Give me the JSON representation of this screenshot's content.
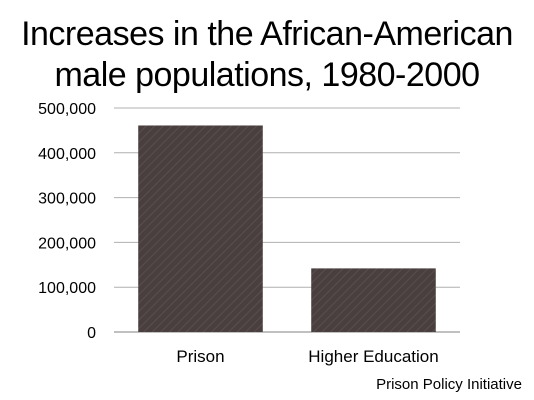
{
  "chart_data": {
    "type": "bar",
    "title_lines": [
      "Increases in the African-American",
      "male populations, 1980-2000"
    ],
    "categories": [
      "Prison",
      "Higher Education"
    ],
    "values": [
      461000,
      142000
    ],
    "ylim": [
      0,
      500000
    ],
    "yticks": [
      0,
      100000,
      200000,
      300000,
      400000,
      500000
    ],
    "ytick_labels": [
      "0",
      "100,000",
      "200,000",
      "300,000",
      "400,000",
      "500,000"
    ],
    "grid": true,
    "bar_color": "#4a3f3f",
    "bar_stripe_color": "#5a4d4d",
    "source": "Prison Policy Initiative"
  }
}
